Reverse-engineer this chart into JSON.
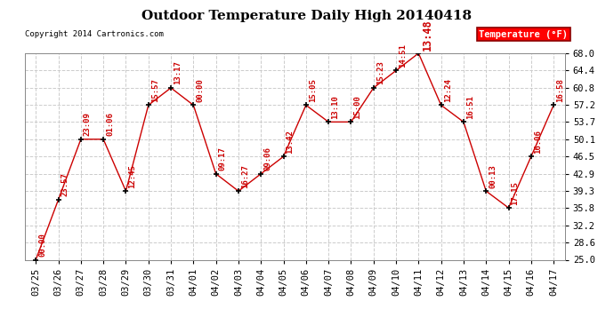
{
  "title": "Outdoor Temperature Daily High 20140418",
  "copyright": "Copyright 2014 Cartronics.com",
  "legend_label": "Temperature (°F)",
  "dates": [
    "03/25",
    "03/26",
    "03/27",
    "03/28",
    "03/29",
    "03/30",
    "03/31",
    "04/01",
    "04/02",
    "04/03",
    "04/04",
    "04/05",
    "04/06",
    "04/07",
    "04/08",
    "04/09",
    "04/10",
    "04/11",
    "04/12",
    "04/13",
    "04/14",
    "04/15",
    "04/16",
    "04/17"
  ],
  "temps": [
    25.0,
    37.5,
    50.1,
    50.1,
    39.3,
    57.2,
    60.8,
    57.2,
    42.9,
    39.3,
    42.9,
    46.5,
    57.2,
    53.7,
    53.7,
    60.8,
    64.4,
    68.0,
    57.2,
    53.7,
    39.3,
    35.8,
    46.5,
    57.2
  ],
  "time_labels": [
    "00:00",
    "23:57",
    "23:09",
    "01:06",
    "12:45",
    "15:57",
    "13:17",
    "00:00",
    "09:17",
    "16:27",
    "09:06",
    "13:42",
    "15:05",
    "13:10",
    "15:00",
    "15:23",
    "14:51",
    "13:48",
    "12:24",
    "16:51",
    "00:13",
    "17:15",
    "16:06",
    "16:58"
  ],
  "ylim": [
    25.0,
    68.0
  ],
  "yticks": [
    25.0,
    28.6,
    32.2,
    35.8,
    39.3,
    42.9,
    46.5,
    50.1,
    53.7,
    57.2,
    60.8,
    64.4,
    68.0
  ],
  "line_color": "#cc0000",
  "marker_color": "#000000",
  "grid_color": "#cccccc",
  "bg_color": "#ffffff",
  "title_fontsize": 11,
  "axis_fontsize": 7.5,
  "annot_fontsize": 6.5,
  "annot_fontsize_large": 8.5
}
